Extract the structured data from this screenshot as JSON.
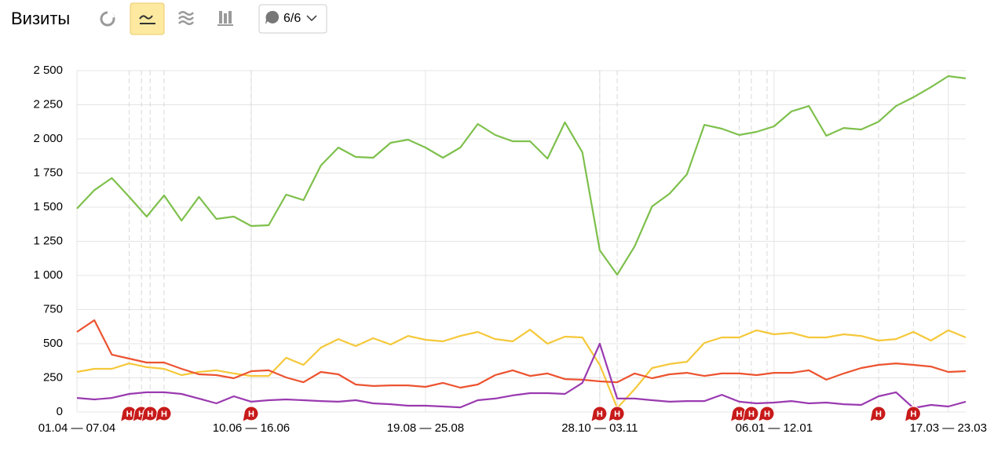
{
  "header": {
    "title": "Визиты",
    "counter": "6/6"
  },
  "chart_data": {
    "type": "line",
    "categories": [
      "01.04 — 07.04",
      null,
      null,
      null,
      null,
      null,
      null,
      null,
      null,
      null,
      "10.06 — 16.06",
      null,
      null,
      null,
      null,
      null,
      null,
      null,
      null,
      null,
      "19.08 — 25.08",
      null,
      null,
      null,
      null,
      null,
      null,
      null,
      null,
      null,
      "28.10 — 03.11",
      null,
      null,
      null,
      null,
      null,
      null,
      null,
      null,
      null,
      "06.01 — 12.01",
      null,
      null,
      null,
      null,
      null,
      null,
      null,
      null,
      null,
      "17.03 — 23.03",
      null
    ],
    "series": [
      {
        "color": "#7ec04c",
        "values": [
          1490,
          1625,
          1713,
          1575,
          1431,
          1586,
          1402,
          1575,
          1414,
          1431,
          1362,
          1368,
          1592,
          1552,
          1805,
          1937,
          1868,
          1862,
          1971,
          1994,
          1937,
          1862,
          1937,
          2109,
          2029,
          1983,
          1983,
          1856,
          2121,
          1902,
          1184,
          1006,
          1213,
          1506,
          1598,
          1741,
          2103,
          2075,
          2029,
          2052,
          2092,
          2201,
          2241,
          2023,
          2080,
          2069,
          2126,
          2241,
          2305,
          2379,
          2460,
          2443
        ]
      },
      {
        "color": "#f5c83a",
        "values": [
          293,
          316,
          316,
          356,
          328,
          316,
          270,
          293,
          305,
          282,
          264,
          264,
          397,
          345,
          471,
          534,
          483,
          540,
          494,
          557,
          529,
          517,
          557,
          586,
          534,
          517,
          603,
          500,
          552,
          546,
          345,
          29,
          167,
          322,
          351,
          368,
          506,
          546,
          546,
          598,
          569,
          580,
          546,
          546,
          569,
          557,
          523,
          534,
          586,
          523,
          598,
          546
        ]
      },
      {
        "color": "#ec5330",
        "values": [
          586,
          672,
          420,
          391,
          362,
          362,
          316,
          276,
          270,
          247,
          299,
          305,
          253,
          218,
          293,
          276,
          201,
          190,
          195,
          195,
          184,
          213,
          178,
          201,
          270,
          305,
          264,
          282,
          241,
          236,
          224,
          218,
          282,
          247,
          276,
          287,
          264,
          282,
          282,
          270,
          287,
          287,
          305,
          236,
          282,
          322,
          345,
          356,
          345,
          333,
          293,
          299
        ]
      },
      {
        "color": "#9a3ab0",
        "values": [
          103,
          92,
          103,
          132,
          144,
          144,
          132,
          98,
          63,
          115,
          75,
          86,
          92,
          86,
          80,
          75,
          86,
          63,
          57,
          46,
          46,
          40,
          34,
          86,
          98,
          121,
          138,
          138,
          132,
          213,
          500,
          98,
          98,
          86,
          75,
          80,
          80,
          126,
          75,
          63,
          69,
          80,
          63,
          69,
          57,
          52,
          115,
          144,
          29,
          52,
          40,
          75
        ]
      }
    ],
    "ylim": [
      0,
      2500
    ],
    "yticks": [
      0,
      250,
      500,
      750,
      {
        "value": 1000,
        "label": "1 000"
      },
      {
        "value": 1250,
        "label": "1 250"
      },
      {
        "value": 1500,
        "label": "1 500"
      },
      {
        "value": 1750,
        "label": "1 750"
      },
      {
        "value": 2000,
        "label": "2 000"
      },
      {
        "value": 2250,
        "label": "2 250"
      },
      {
        "value": 2500,
        "label": "2 500"
      }
    ],
    "grid": true,
    "annotations": [
      {
        "x": 3,
        "label": "Н"
      },
      {
        "x": 3.7,
        "label": "Н"
      },
      {
        "x": 4.2,
        "label": "Н"
      },
      {
        "x": 5,
        "label": "Н"
      },
      {
        "x": 10,
        "label": "Н"
      },
      {
        "x": 30,
        "label": "Н"
      },
      {
        "x": 31,
        "label": "Н"
      },
      {
        "x": 38,
        "label": "Н"
      },
      {
        "x": 38.7,
        "label": "Н"
      },
      {
        "x": 39.6,
        "label": "Н"
      },
      {
        "x": 46,
        "label": "Н"
      },
      {
        "x": 48,
        "label": "Н"
      }
    ]
  }
}
